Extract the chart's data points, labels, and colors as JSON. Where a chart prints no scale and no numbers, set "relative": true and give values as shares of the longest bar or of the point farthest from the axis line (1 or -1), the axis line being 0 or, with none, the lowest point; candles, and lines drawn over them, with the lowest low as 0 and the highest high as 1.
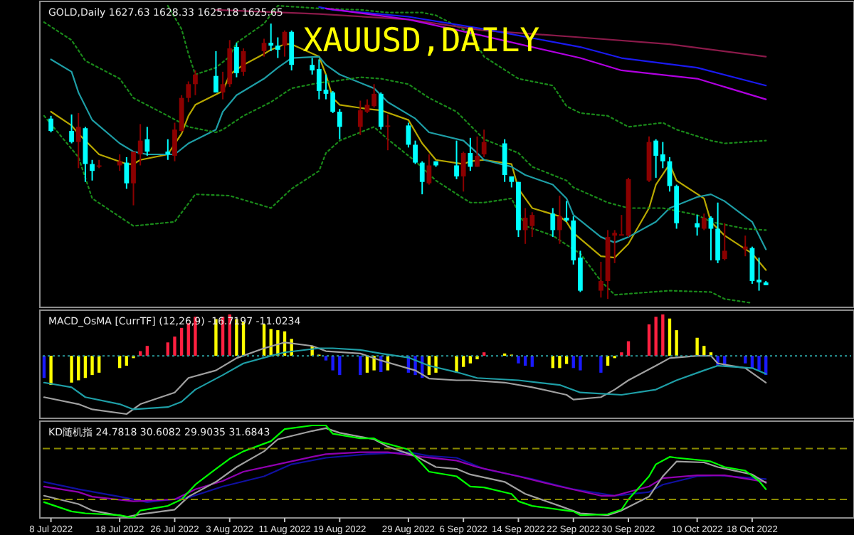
{
  "chart_data": [
    {
      "type": "candlestick",
      "title": "XAUUSD,DAILY",
      "subtitle": "GOLD,Daily 1627.63 1628.33 1625.18 1625.65",
      "relative": true,
      "xlim": [
        "2022-07-06T19:12",
        "2022-11-01T09:36"
      ],
      "tick_labels": false,
      "x": [
        "2022-07-08",
        "2022-07-11",
        "2022-07-12",
        "2022-07-13",
        "2022-07-14",
        "2022-07-15",
        "2022-07-18",
        "2022-07-19",
        "2022-07-20",
        "2022-07-21",
        "2022-07-22",
        "2022-07-25",
        "2022-07-26",
        "2022-07-27",
        "2022-07-28",
        "2022-07-29",
        "2022-08-01",
        "2022-08-02",
        "2022-08-03",
        "2022-08-04",
        "2022-08-05",
        "2022-08-08",
        "2022-08-09",
        "2022-08-10",
        "2022-08-11",
        "2022-08-12",
        "2022-08-15",
        "2022-08-16",
        "2022-08-17",
        "2022-08-18",
        "2022-08-19",
        "2022-08-22",
        "2022-08-23",
        "2022-08-24",
        "2022-08-25",
        "2022-08-26",
        "2022-08-29",
        "2022-08-30",
        "2022-08-31",
        "2022-09-01",
        "2022-09-02",
        "2022-09-05",
        "2022-09-06",
        "2022-09-07",
        "2022-09-08",
        "2022-09-09",
        "2022-09-12",
        "2022-09-13",
        "2022-09-14",
        "2022-09-15",
        "2022-09-16",
        "2022-09-19",
        "2022-09-20",
        "2022-09-21",
        "2022-09-22",
        "2022-09-23",
        "2022-09-26",
        "2022-09-27",
        "2022-09-28",
        "2022-09-29",
        "2022-09-30",
        "2022-10-03",
        "2022-10-04",
        "2022-10-05",
        "2022-10-06",
        "2022-10-07",
        "2022-10-10",
        "2022-10-11",
        "2022-10-12",
        "2022-10-13",
        "2022-10-14",
        "2022-10-17",
        "2022-10-18",
        "2022-10-19",
        "2022-10-20"
      ],
      "ohlc": [
        [
          0.655,
          0.665,
          0.605,
          0.61
        ],
        [
          0.61,
          0.67,
          0.565,
          0.57
        ],
        [
          0.57,
          0.675,
          0.475,
          0.625
        ],
        [
          0.62,
          0.625,
          0.425,
          0.49
        ],
        [
          0.49,
          0.505,
          0.43,
          0.465
        ],
        [
          0.48,
          0.505,
          0.475,
          0.485
        ],
        [
          0.485,
          0.525,
          0.465,
          0.5
        ],
        [
          0.495,
          0.515,
          0.4,
          0.42
        ],
        [
          0.42,
          0.535,
          0.34,
          0.535
        ],
        [
          0.525,
          0.635,
          0.485,
          0.575
        ],
        [
          0.58,
          0.625,
          0.52,
          0.535
        ],
        [
          0.535,
          0.58,
          0.505,
          0.525
        ],
        [
          0.52,
          0.64,
          0.5,
          0.615
        ],
        [
          0.61,
          0.74,
          0.605,
          0.73
        ],
        [
          0.73,
          0.79,
          0.715,
          0.78
        ],
        [
          0.78,
          0.83,
          0.74,
          0.815
        ],
        [
          0.81,
          0.9,
          0.75,
          0.75
        ],
        [
          0.75,
          0.825,
          0.725,
          0.78
        ],
        [
          0.78,
          0.94,
          0.77,
          0.91
        ],
        [
          0.915,
          0.93,
          0.805,
          0.82
        ],
        [
          0.825,
          0.91,
          0.81,
          0.9
        ],
        [
          0.9,
          0.945,
          0.88,
          0.93
        ],
        [
          0.93,
          1,
          0.9,
          0.92
        ],
        [
          0.92,
          0.95,
          0.875,
          0.905
        ],
        [
          0.92,
          0.975,
          0.88,
          0.97
        ],
        [
          0.97,
          0.975,
          0.83,
          0.85
        ],
        [
          0.85,
          0.875,
          0.815,
          0.83
        ],
        [
          0.835,
          0.87,
          0.725,
          0.755
        ],
        [
          0.76,
          0.815,
          0.725,
          0.745
        ],
        [
          0.75,
          0.755,
          0.675,
          0.68
        ],
        [
          0.68,
          0.69,
          0.58,
          0.625
        ],
        [
          0.625,
          0.72,
          0.595,
          0.685
        ],
        [
          0.68,
          0.725,
          0.675,
          0.705
        ],
        [
          0.7,
          0.78,
          0.695,
          0.745
        ],
        [
          0.745,
          0.75,
          0.615,
          0.625
        ],
        [
          0.625,
          0.67,
          0.54,
          0.63
        ],
        [
          0.63,
          0.64,
          0.55,
          0.56
        ],
        [
          0.56,
          0.575,
          0.49,
          0.495
        ],
        [
          0.495,
          0.5,
          0.38,
          0.425
        ],
        [
          0.42,
          0.525,
          0.415,
          0.485
        ],
        [
          0.5,
          0.5,
          0.48,
          0.485
        ],
        [
          0.485,
          0.575,
          0.435,
          0.445
        ],
        [
          0.445,
          0.535,
          0.39,
          0.53
        ],
        [
          0.53,
          0.585,
          0.465,
          0.48
        ],
        [
          0.48,
          0.59,
          0.48,
          0.52
        ],
        [
          0.525,
          0.615,
          0.515,
          0.57
        ],
        [
          0.565,
          0.58,
          0.425,
          0.45
        ],
        [
          0.445,
          0.445,
          0.405,
          0.425
        ],
        [
          0.425,
          0.425,
          0.225,
          0.25
        ],
        [
          0.25,
          0.33,
          0.2,
          0.295
        ],
        [
          0.265,
          0.315,
          0.225,
          0.305
        ],
        [
          0.31,
          0.33,
          0.225,
          0.25
        ],
        [
          0.25,
          0.375,
          0.2,
          0.3
        ],
        [
          0.295,
          0.355,
          0.28,
          0.285
        ],
        [
          0.285,
          0.3,
          0.125,
          0.14
        ],
        [
          0.15,
          0.175,
          0.025,
          0.03
        ],
        [
          0.03,
          0.135,
          0.005,
          0.065
        ],
        [
          0.065,
          0.25,
          0,
          0.225
        ],
        [
          0.23,
          0.25,
          0.13,
          0.24
        ],
        [
          0.23,
          0.305,
          0.23,
          0.235
        ],
        [
          0.23,
          0.44,
          0.225,
          0.435
        ],
        [
          0.43,
          0.59,
          0.425,
          0.57
        ],
        [
          0.575,
          0.58,
          0.44,
          0.52
        ],
        [
          0.525,
          0.57,
          0.475,
          0.5
        ],
        [
          0.5,
          0.515,
          0.39,
          0.41
        ],
        [
          0.41,
          0.415,
          0.255,
          0.275
        ],
        [
          0.275,
          0.305,
          0.23,
          0.26
        ],
        [
          0.255,
          0.31,
          0.25,
          0.295
        ],
        [
          0.295,
          0.3,
          0.14,
          0.255
        ],
        [
          0.255,
          0.35,
          0.13,
          0.14
        ],
        [
          0.145,
          0.275,
          0.14,
          0.175
        ],
        [
          0.18,
          0.23,
          0.155,
          0.19
        ],
        [
          0.185,
          0.19,
          0.055,
          0.065
        ],
        [
          0.07,
          0.15,
          0.03,
          0.06
        ],
        [
          0.06,
          0.065,
          0.05,
          0.05
        ]
      ],
      "colors": [
        "#00ffff",
        "#00ffff",
        "#8b0000",
        "#00ffff",
        "#00ffff",
        "#8b0000",
        "#8b0000",
        "#00ffff",
        "#8b0000",
        "#8b0000",
        "#00ffff",
        "#00ffff",
        "#8b0000",
        "#8b0000",
        "#8b0000",
        "#8b0000",
        "#00ffff",
        "#8b0000",
        "#8b0000",
        "#00ffff",
        "#8b0000",
        "#8b0000",
        "#00ffff",
        "#00ffff",
        "#8b0000",
        "#00ffff",
        "#00ffff",
        "#00ffff",
        "#00ffff",
        "#00ffff",
        "#00ffff",
        "#8b0000",
        "#8b0000",
        "#8b0000",
        "#00ffff",
        "#8b0000",
        "#00ffff",
        "#00ffff",
        "#00ffff",
        "#8b0000",
        "#00ffff",
        "#00ffff",
        "#8b0000",
        "#00ffff",
        "#8b0000",
        "#8b0000",
        "#00ffff",
        "#00ffff",
        "#00ffff",
        "#8b0000",
        "#8b0000",
        "#00ffff",
        "#8b0000",
        "#00ffff",
        "#00ffff",
        "#00ffff",
        "#8b0000",
        "#8b0000",
        "#8b0000",
        "#8b0000",
        "#8b0000",
        "#8b0000",
        "#00ffff",
        "#00ffff",
        "#00ffff",
        "#00ffff",
        "#00ffff",
        "#8b0000",
        "#00ffff",
        "#00ffff",
        "#8b0000",
        "#8b0000",
        "#00ffff",
        "#00ffff",
        "#00ffff"
      ],
      "series": [
        {
          "type": "line",
          "color": "#b8a800",
          "line_style": "solid",
          "x": [
            "2022-07-08",
            "2022-07-11",
            "2022-07-12",
            "2022-07-14",
            "2022-07-15",
            "2022-07-19",
            "2022-07-20",
            "2022-07-21",
            "2022-07-25",
            "2022-07-27",
            "2022-07-28",
            "2022-07-29",
            "2022-08-02",
            "2022-08-03",
            "2022-08-05",
            "2022-08-08",
            "2022-08-09",
            "2022-08-11",
            "2022-08-12",
            "2022-08-16",
            "2022-08-17",
            "2022-08-18",
            "2022-08-19",
            "2022-08-23",
            "2022-08-25",
            "2022-08-29",
            "2022-08-31",
            "2022-09-02",
            "2022-09-06",
            "2022-09-07",
            "2022-09-09",
            "2022-09-13",
            "2022-09-14",
            "2022-09-16",
            "2022-09-20",
            "2022-09-21",
            "2022-09-22",
            "2022-09-26",
            "2022-09-28",
            "2022-09-30",
            "2022-10-03",
            "2022-10-04",
            "2022-10-06",
            "2022-10-07",
            "2022-10-11",
            "2022-10-12",
            "2022-10-14",
            "2022-10-18",
            "2022-10-20"
          ],
          "values": [
            0.68,
            0.63,
            0.6,
            0.55,
            0.525,
            0.49,
            0.49,
            0.505,
            0.525,
            0.6,
            0.665,
            0.705,
            0.755,
            0.815,
            0.85,
            0.89,
            0.905,
            0.925,
            0.925,
            0.88,
            0.815,
            0.73,
            0.705,
            0.69,
            0.685,
            0.65,
            0.565,
            0.505,
            0.49,
            0.5,
            0.505,
            0.49,
            0.4,
            0.33,
            0.3,
            0.28,
            0.24,
            0.155,
            0.15,
            0.2,
            0.33,
            0.415,
            0.49,
            0.43,
            0.365,
            0.28,
            0.23,
            0.165,
            0.105
          ]
        },
        {
          "type": "line",
          "color": "#1e9ea6",
          "line_style": "solid",
          "x": [
            "2022-07-08",
            "2022-07-11",
            "2022-07-12",
            "2022-07-14",
            "2022-07-18",
            "2022-07-20",
            "2022-07-22",
            "2022-07-26",
            "2022-07-28",
            "2022-08-01",
            "2022-08-02",
            "2022-08-04",
            "2022-08-08",
            "2022-08-10",
            "2022-08-12",
            "2022-08-16",
            "2022-08-17",
            "2022-08-19",
            "2022-08-24",
            "2022-08-26",
            "2022-08-30",
            "2022-09-01",
            "2022-09-06",
            "2022-09-08",
            "2022-09-09",
            "2022-09-13",
            "2022-09-15",
            "2022-09-19",
            "2022-09-21",
            "2022-09-22",
            "2022-09-26",
            "2022-09-28",
            "2022-09-30",
            "2022-10-04",
            "2022-10-06",
            "2022-10-10",
            "2022-10-12",
            "2022-10-14",
            "2022-10-18",
            "2022-10-20"
          ],
          "values": [
            0.87,
            0.825,
            0.75,
            0.65,
            0.565,
            0.535,
            0.525,
            0.525,
            0.565,
            0.615,
            0.68,
            0.74,
            0.8,
            0.84,
            0.875,
            0.88,
            0.85,
            0.815,
            0.765,
            0.715,
            0.655,
            0.605,
            0.575,
            0.53,
            0.505,
            0.48,
            0.45,
            0.415,
            0.365,
            0.305,
            0.225,
            0.205,
            0.225,
            0.28,
            0.33,
            0.37,
            0.38,
            0.355,
            0.28,
            0.18
          ]
        },
        {
          "type": "line",
          "color": "#1a8a1a",
          "line_style": "dotted",
          "x": [
            "2022-07-25",
            "2022-07-27",
            "2022-07-28",
            "2022-07-29",
            "2022-08-01",
            "2022-08-03",
            "2022-08-04",
            "2022-08-08",
            "2022-08-10",
            "2022-08-16",
            "2022-08-22",
            "2022-08-26",
            "2022-08-31",
            "2022-09-02",
            "2022-09-07",
            "2022-09-09",
            "2022-09-14",
            "2022-09-19",
            "2022-09-21",
            "2022-09-23",
            "2022-09-27",
            "2022-09-30",
            "2022-10-05",
            "2022-10-07",
            "2022-10-12",
            "2022-10-14",
            "2022-10-20"
          ],
          "values": [
            1.065,
            0.98,
            0.89,
            0.815,
            0.84,
            0.88,
            0.93,
            1,
            1.065,
            1.055,
            1.05,
            1.04,
            1.04,
            1.03,
            0.965,
            0.88,
            0.8,
            0.775,
            0.7,
            0.675,
            0.665,
            0.625,
            0.64,
            0.615,
            0.575,
            0.565,
            0.575
          ]
        },
        {
          "type": "line",
          "color": "#1a8a1a",
          "line_style": "dotted",
          "x": [
            "2022-07-07",
            "2022-07-11",
            "2022-07-13",
            "2022-07-18",
            "2022-07-20",
            "2022-07-25",
            "2022-07-28",
            "2022-08-01",
            "2022-08-02",
            "2022-08-05",
            "2022-08-09",
            "2022-08-12",
            "2022-08-16",
            "2022-08-18",
            "2022-08-22",
            "2022-08-25",
            "2022-08-29",
            "2022-09-01",
            "2022-09-05",
            "2022-09-07",
            "2022-09-09",
            "2022-09-14",
            "2022-09-16",
            "2022-09-21",
            "2022-09-22",
            "2022-09-27",
            "2022-09-30",
            "2022-10-05",
            "2022-10-10",
            "2022-10-12",
            "2022-10-17",
            "2022-10-20"
          ],
          "values": [
            1.005,
            0.94,
            0.865,
            0.8,
            0.73,
            0.665,
            0.625,
            0.605,
            0.615,
            0.665,
            0.715,
            0.765,
            0.785,
            0.79,
            0.805,
            0.8,
            0.78,
            0.73,
            0.68,
            0.63,
            0.58,
            0.53,
            0.48,
            0.43,
            0.405,
            0.35,
            0.33,
            0.33,
            0.305,
            0.28,
            0.255,
            0.25
          ]
        },
        {
          "type": "line",
          "color": "#1a8a1a",
          "line_style": "dotted",
          "x": [
            "2022-07-07",
            "2022-07-12",
            "2022-07-14",
            "2022-07-20",
            "2022-07-26",
            "2022-07-29",
            "2022-08-03",
            "2022-08-09",
            "2022-08-12",
            "2022-08-16",
            "2022-08-17",
            "2022-08-19",
            "2022-08-24",
            "2022-08-26",
            "2022-08-30",
            "2022-09-02",
            "2022-09-06",
            "2022-09-07",
            "2022-09-09",
            "2022-09-13",
            "2022-09-15",
            "2022-09-19",
            "2022-09-22",
            "2022-09-23",
            "2022-09-26",
            "2022-09-28",
            "2022-10-06",
            "2022-10-12",
            "2022-10-14",
            "2022-10-18"
          ],
          "values": [
            0.665,
            0.515,
            0.365,
            0.265,
            0.28,
            0.38,
            0.375,
            0.33,
            0.4,
            0.465,
            0.53,
            0.575,
            0.625,
            0.58,
            0.5,
            0.43,
            0.365,
            0.35,
            0.35,
            0.365,
            0.265,
            0.23,
            0.18,
            0.165,
            0.065,
            0.015,
            0.03,
            0.025,
            0,
            -0.015
          ]
        },
        {
          "type": "line",
          "color": "#8b1a4a",
          "line_style": "solid",
          "x": [
            "2022-08-01",
            "2022-08-16",
            "2022-08-29",
            "2022-09-09",
            "2022-09-23",
            "2022-10-06",
            "2022-10-20"
          ],
          "values": [
            1.05,
            1.035,
            1.015,
            0.975,
            0.95,
            0.925,
            0.88
          ]
        },
        {
          "type": "line",
          "color": "#1a1af0",
          "line_style": "solid",
          "x": [
            "2022-08-16",
            "2022-08-18",
            "2022-08-29",
            "2022-09-09",
            "2022-09-23",
            "2022-09-29",
            "2022-10-10",
            "2022-10-20"
          ],
          "values": [
            1.06,
            1.05,
            1.025,
            0.98,
            0.915,
            0.875,
            0.84,
            0.775
          ]
        },
        {
          "type": "line",
          "color": "#b000e0",
          "line_style": "solid",
          "x": [
            "2022-08-17",
            "2022-08-29",
            "2022-09-09",
            "2022-09-23",
            "2022-09-29",
            "2022-10-10",
            "2022-10-20"
          ],
          "values": [
            1.055,
            1.015,
            0.955,
            0.875,
            0.83,
            0.8,
            0.725
          ]
        }
      ]
    },
    {
      "type": "bar",
      "title": "MACD_OsMA [CurrTF] (12,26,9) -16.7197 -11.0234",
      "relative": true,
      "xlim": [
        "2022-07-06T19:12",
        "2022-11-01T09:36"
      ],
      "tick_labels": false,
      "ref_lines": [
        {
          "axis": "y",
          "value": 0,
          "color": "#2a9d9d",
          "line_style": "dotted"
        }
      ],
      "series": [
        {
          "type": "bar",
          "x": [
            "2022-07-07",
            "2022-07-08",
            "2022-07-11",
            "2022-07-12",
            "2022-07-13",
            "2022-07-14",
            "2022-07-15",
            "2022-07-18",
            "2022-07-19",
            "2022-07-20",
            "2022-07-21",
            "2022-07-22",
            "2022-07-25",
            "2022-07-26",
            "2022-07-27",
            "2022-07-28",
            "2022-07-29",
            "2022-08-01",
            "2022-08-02",
            "2022-08-03",
            "2022-08-04",
            "2022-08-05",
            "2022-08-08",
            "2022-08-09",
            "2022-08-10",
            "2022-08-11",
            "2022-08-12",
            "2022-08-15",
            "2022-08-16",
            "2022-08-17",
            "2022-08-18",
            "2022-08-19",
            "2022-08-22",
            "2022-08-23",
            "2022-08-24",
            "2022-08-25",
            "2022-08-26",
            "2022-08-29",
            "2022-08-30",
            "2022-08-31",
            "2022-09-01",
            "2022-09-02",
            "2022-09-05",
            "2022-09-06",
            "2022-09-07",
            "2022-09-08",
            "2022-09-09",
            "2022-09-12",
            "2022-09-13",
            "2022-09-14",
            "2022-09-15",
            "2022-09-16",
            "2022-09-19",
            "2022-09-20",
            "2022-09-21",
            "2022-09-22",
            "2022-09-23",
            "2022-09-26",
            "2022-09-27",
            "2022-09-28",
            "2022-09-29",
            "2022-09-30",
            "2022-10-03",
            "2022-10-04",
            "2022-10-05",
            "2022-10-06",
            "2022-10-07",
            "2022-10-10",
            "2022-10-11",
            "2022-10-12",
            "2022-10-13",
            "2022-10-14",
            "2022-10-17",
            "2022-10-18",
            "2022-10-19",
            "2022-10-20"
          ],
          "values": [
            -0.38,
            -0.5,
            -0.46,
            -0.42,
            -0.38,
            -0.33,
            -0.29,
            -0.21,
            -0.17,
            -0.04,
            0.08,
            0.17,
            0.23,
            0.33,
            0.48,
            0.56,
            0.67,
            0.63,
            0.67,
            0.71,
            0.63,
            0.58,
            0.54,
            0.46,
            0.44,
            0.42,
            0.29,
            0.17,
            0.02,
            -0.08,
            -0.25,
            -0.33,
            -0.33,
            -0.29,
            -0.25,
            -0.28,
            -0.25,
            -0.29,
            -0.33,
            -0.38,
            -0.33,
            -0.29,
            -0.29,
            -0.19,
            -0.13,
            -0.06,
            0.06,
            0.04,
            0.02,
            -0.13,
            -0.17,
            -0.19,
            -0.21,
            -0.21,
            -0.14,
            -0.21,
            -0.25,
            -0.29,
            -0.17,
            -0.04,
            0.06,
            0.25,
            0.54,
            0.67,
            0.71,
            0.64,
            0.44,
            0.31,
            0.17,
            0.06,
            -0.17,
            -0.17,
            -0.13,
            -0.21,
            -0.25,
            -0.33
          ],
          "colors": [
            "#1a1aff",
            "#ffff00",
            "#ffff00",
            "#ffff00",
            "#ffff00",
            "#ffff00",
            "#ffff00",
            "#ffff00",
            "#ffff00",
            "#ffff00",
            "#ff2040",
            "#ff2040",
            "#ff2040",
            "#ff2040",
            "#ff2040",
            "#ff2040",
            "#ff2040",
            "#ffff00",
            "#ff2040",
            "#ff2040",
            "#ffff00",
            "#ffff00",
            "#ffff00",
            "#ffff00",
            "#ffff00",
            "#ffff00",
            "#ffff00",
            "#ffff00",
            "#ffff00",
            "#1a1aff",
            "#1a1aff",
            "#1a1aff",
            "#1a1aff",
            "#ffff00",
            "#ffff00",
            "#1a1aff",
            "#ffff00",
            "#1a1aff",
            "#1a1aff",
            "#1a1aff",
            "#ffff00",
            "#ffff00",
            "#ffff00",
            "#ffff00",
            "#ffff00",
            "#ffff00",
            "#ff2040",
            "#ffff00",
            "#ffff00",
            "#1a1aff",
            "#1a1aff",
            "#1a1aff",
            "#ffff00",
            "#ffff00",
            "#ffff00",
            "#1a1aff",
            "#1a1aff",
            "#1a1aff",
            "#ffff00",
            "#ffff00",
            "#ff2040",
            "#ff2040",
            "#ff2040",
            "#ff2040",
            "#ff2040",
            "#ffff00",
            "#ffff00",
            "#ffff00",
            "#ffff00",
            "#ffff00",
            "#1a1aff",
            "#1a1aff",
            "#1a1aff",
            "#1a1aff",
            "#1a1aff",
            "#1a1aff"
          ]
        },
        {
          "type": "line",
          "color": "#a0a0a0",
          "line_style": "solid",
          "x": [
            "2022-07-07",
            "2022-07-12",
            "2022-07-14",
            "2022-07-19",
            "2022-07-21",
            "2022-07-26",
            "2022-07-28",
            "2022-08-01",
            "2022-08-04",
            "2022-08-08",
            "2022-08-11",
            "2022-08-15",
            "2022-08-17",
            "2022-08-22",
            "2022-08-25",
            "2022-08-30",
            "2022-09-01",
            "2022-09-05",
            "2022-09-07",
            "2022-09-12",
            "2022-09-16",
            "2022-09-21",
            "2022-09-22",
            "2022-09-26",
            "2022-09-28",
            "2022-09-30",
            "2022-10-04",
            "2022-10-06",
            "2022-10-10",
            "2022-10-12",
            "2022-10-13",
            "2022-10-17",
            "2022-10-20"
          ],
          "values": [
            -0.71,
            -0.83,
            -0.92,
            -1,
            -0.83,
            -0.63,
            -0.38,
            -0.25,
            -0.04,
            0.13,
            0.23,
            0.17,
            0.08,
            0.04,
            -0.08,
            -0.25,
            -0.39,
            -0.42,
            -0.42,
            -0.46,
            -0.54,
            -0.67,
            -0.75,
            -0.71,
            -0.58,
            -0.42,
            -0.17,
            -0.04,
            0,
            0,
            -0.13,
            -0.21,
            -0.46
          ]
        },
        {
          "type": "line",
          "color": "#1e9ea6",
          "line_style": "solid",
          "x": [
            "2022-07-07",
            "2022-07-11",
            "2022-07-13",
            "2022-07-18",
            "2022-07-20",
            "2022-07-25",
            "2022-07-27",
            "2022-07-29",
            "2022-08-02",
            "2022-08-05",
            "2022-08-09",
            "2022-08-11",
            "2022-08-16",
            "2022-08-18",
            "2022-08-22",
            "2022-08-25",
            "2022-08-29",
            "2022-09-01",
            "2022-09-05",
            "2022-09-08",
            "2022-09-14",
            "2022-09-20",
            "2022-09-23",
            "2022-09-29",
            "2022-10-04",
            "2022-10-07",
            "2022-10-11",
            "2022-10-13",
            "2022-10-18",
            "2022-10-20"
          ],
          "values": [
            -0.46,
            -0.54,
            -0.71,
            -0.83,
            -0.92,
            -0.88,
            -0.79,
            -0.58,
            -0.33,
            -0.13,
            0,
            0.06,
            0.13,
            0.13,
            0.1,
            0.04,
            -0.03,
            -0.17,
            -0.28,
            -0.38,
            -0.42,
            -0.5,
            -0.63,
            -0.67,
            -0.58,
            -0.42,
            -0.25,
            -0.17,
            -0.21,
            -0.31
          ]
        }
      ]
    },
    {
      "type": "line",
      "title": "KD随机指 24.7818 30.6082 29.9035 31.6843",
      "relative": true,
      "xlim": [
        "2022-07-06T19:12",
        "2022-11-01T09:36"
      ],
      "tick_labels": "x",
      "xticks": [
        {
          "value": "2022-07-08",
          "label": "8 Jul 2022"
        },
        {
          "value": "2022-07-18",
          "label": "18 Jul 2022"
        },
        {
          "value": "2022-07-26",
          "label": "26 Jul 2022"
        },
        {
          "value": "2022-08-03",
          "label": "3 Aug 2022"
        },
        {
          "value": "2022-08-11",
          "label": "11 Aug 2022"
        },
        {
          "value": "2022-08-19",
          "label": "19 Aug 2022"
        },
        {
          "value": "2022-08-29",
          "label": "29 Aug 2022"
        },
        {
          "value": "2022-09-06",
          "label": "6 Sep 2022"
        },
        {
          "value": "2022-09-14",
          "label": "14 Sep 2022"
        },
        {
          "value": "2022-09-22",
          "label": "22 Sep 2022"
        },
        {
          "value": "2022-09-30",
          "label": "30 Sep 2022"
        },
        {
          "value": "2022-10-10",
          "label": "10 Oct 2022"
        },
        {
          "value": "2022-10-18",
          "label": "18 Oct 2022"
        }
      ],
      "ref_lines": [
        {
          "axis": "y",
          "value": 0.75,
          "color": "#8a8a00",
          "line_style": "dashed"
        },
        {
          "axis": "y",
          "value": 0.2,
          "color": "#8a8a00",
          "line_style": "dashed"
        }
      ],
      "series": [
        {
          "color": "#1010a0",
          "line_style": "solid",
          "x": [
            "2022-07-07",
            "2022-07-12",
            "2022-07-18",
            "2022-07-22",
            "2022-07-28",
            "2022-08-02",
            "2022-08-08",
            "2022-08-12",
            "2022-08-17",
            "2022-08-23",
            "2022-08-29",
            "2022-09-01",
            "2022-09-05",
            "2022-09-09",
            "2022-09-16",
            "2022-09-22",
            "2022-09-28",
            "2022-10-03",
            "2022-10-05",
            "2022-10-10",
            "2022-10-13",
            "2022-10-20"
          ],
          "values": [
            0.39,
            0.31,
            0.23,
            0.17,
            0.22,
            0.34,
            0.45,
            0.58,
            0.65,
            0.69,
            0.71,
            0.67,
            0.65,
            0.53,
            0.42,
            0.31,
            0.24,
            0.28,
            0.36,
            0.45,
            0.46,
            0.42
          ]
        },
        {
          "color": "#9000b0",
          "line_style": "solid",
          "x": [
            "2022-07-07",
            "2022-07-12",
            "2022-07-14",
            "2022-07-20",
            "2022-07-26",
            "2022-07-29",
            "2022-08-02",
            "2022-08-05",
            "2022-08-10",
            "2022-08-15",
            "2022-08-17",
            "2022-08-22",
            "2022-08-26",
            "2022-08-31",
            "2022-09-05",
            "2022-09-08",
            "2022-09-14",
            "2022-09-20",
            "2022-09-26",
            "2022-09-28",
            "2022-10-03",
            "2022-10-05",
            "2022-10-10",
            "2022-10-14",
            "2022-10-20"
          ],
          "values": [
            0.34,
            0.28,
            0.23,
            0.18,
            0.2,
            0.31,
            0.4,
            0.5,
            0.58,
            0.66,
            0.69,
            0.71,
            0.71,
            0.66,
            0.62,
            0.55,
            0.45,
            0.34,
            0.24,
            0.24,
            0.34,
            0.43,
            0.46,
            0.46,
            0.39
          ]
        },
        {
          "color": "#a0a0a0",
          "line_style": "solid",
          "x": [
            "2022-07-07",
            "2022-07-12",
            "2022-07-14",
            "2022-07-19",
            "2022-07-21",
            "2022-07-26",
            "2022-07-28",
            "2022-08-01",
            "2022-08-04",
            "2022-08-08",
            "2022-08-10",
            "2022-08-15",
            "2022-08-17",
            "2022-08-19",
            "2022-08-24",
            "2022-08-26",
            "2022-08-30",
            "2022-09-02",
            "2022-09-05",
            "2022-09-07",
            "2022-09-12",
            "2022-09-15",
            "2022-09-20",
            "2022-09-23",
            "2022-09-27",
            "2022-09-29",
            "2022-10-03",
            "2022-10-05",
            "2022-10-07",
            "2022-10-11",
            "2022-10-13",
            "2022-10-18",
            "2022-10-20"
          ],
          "values": [
            0.24,
            0.15,
            0.08,
            0.01,
            0.04,
            0.09,
            0.23,
            0.39,
            0.55,
            0.72,
            0.85,
            0.94,
            0.97,
            0.92,
            0.85,
            0.77,
            0.67,
            0.55,
            0.53,
            0.47,
            0.39,
            0.26,
            0.13,
            0.05,
            0.03,
            0.08,
            0.23,
            0.45,
            0.61,
            0.6,
            0.55,
            0.47,
            0.38
          ]
        },
        {
          "color": "#00ff00",
          "line_style": "solid",
          "x": [
            "2022-07-07",
            "2022-07-11",
            "2022-07-13",
            "2022-07-18",
            "2022-07-20",
            "2022-07-21",
            "2022-07-25",
            "2022-07-27",
            "2022-07-29",
            "2022-08-01",
            "2022-08-03",
            "2022-08-05",
            "2022-08-09",
            "2022-08-11",
            "2022-08-15",
            "2022-08-17",
            "2022-08-18",
            "2022-08-22",
            "2022-08-24",
            "2022-08-25",
            "2022-08-29",
            "2022-08-31",
            "2022-09-01",
            "2022-09-05",
            "2022-09-07",
            "2022-09-09",
            "2022-09-13",
            "2022-09-14",
            "2022-09-16",
            "2022-09-20",
            "2022-09-22",
            "2022-09-23",
            "2022-09-27",
            "2022-09-29",
            "2022-09-30",
            "2022-10-03",
            "2022-10-04",
            "2022-10-06",
            "2022-10-07",
            "2022-10-11",
            "2022-10-12",
            "2022-10-14",
            "2022-10-17",
            "2022-10-19",
            "2022-10-20"
          ],
          "values": [
            0.17,
            0.07,
            0.05,
            0.03,
            0,
            0.08,
            0.13,
            0.2,
            0.36,
            0.53,
            0.64,
            0.72,
            0.83,
            0.96,
            1,
            1,
            0.91,
            0.86,
            0.86,
            0.82,
            0.74,
            0.58,
            0.5,
            0.45,
            0.34,
            0.33,
            0.26,
            0.18,
            0.13,
            0.09,
            0.07,
            0.03,
            0.04,
            0.09,
            0.2,
            0.45,
            0.58,
            0.66,
            0.65,
            0.62,
            0.61,
            0.55,
            0.51,
            0.4,
            0.31
          ]
        }
      ]
    }
  ]
}
